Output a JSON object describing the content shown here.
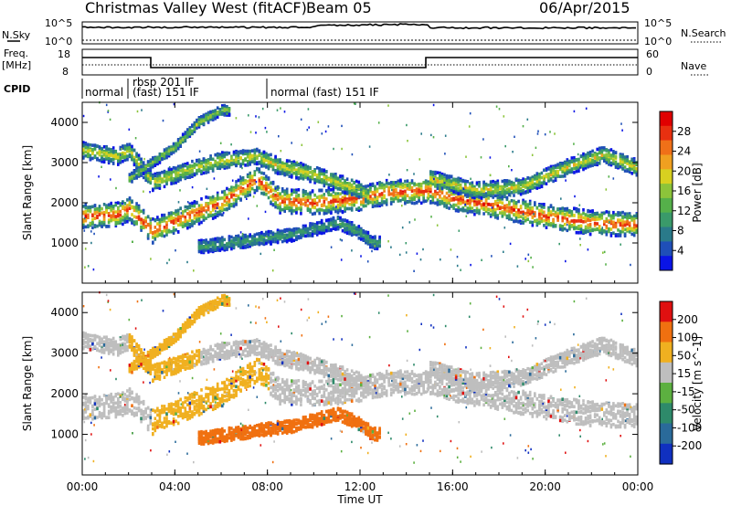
{
  "header": {
    "title": "Christmas Valley West (fitACF)",
    "beam": "Beam 05",
    "date": "06/Apr/2015"
  },
  "aux_panels": {
    "nsky_label": "N.Sky",
    "nsearch_label": "N.Search",
    "noise_ticks_left": [
      "10^5",
      "10^0"
    ],
    "noise_ticks_right": [
      "10^5",
      "10^0"
    ],
    "freq_label_1": "Freq.",
    "freq_label_2": "[MHz]",
    "freq_ticks": [
      "18",
      "8"
    ],
    "nave_label": "Nave",
    "nave_ticks": [
      "60",
      "0"
    ],
    "cpid_label": "CPID",
    "cpid_segments": [
      {
        "text": "normal",
        "start_hour": 0.0
      },
      {
        "text": "rbsp 201 IF",
        "start_hour": 1.75
      },
      {
        "text": "(fast) 151 IF",
        "start_hour": 1.75
      },
      {
        "text": "normal (fast) 151 IF",
        "start_hour": 8.0
      }
    ]
  },
  "chart_data": [
    {
      "type": "heatmap",
      "quantity": "Power",
      "ylabel": "Slant Range [km]",
      "xlabel": "Time UT",
      "x_ticks": [
        "00:00",
        "04:00",
        "08:00",
        "12:00",
        "16:00",
        "20:00",
        "00:00"
      ],
      "xlim_hours": [
        0,
        24
      ],
      "ylim": [
        0,
        4500
      ],
      "y_ticks": [
        1000,
        2000,
        3000,
        4000
      ],
      "colorbar_label": "Power [dB]",
      "colorbar_ticks": [
        "4",
        "8",
        "12",
        "16",
        "20",
        "24",
        "28"
      ],
      "colormap": [
        "#0a14e6",
        "#1f4fb8",
        "#2a7a8a",
        "#3a9a6a",
        "#55b04a",
        "#8cc43a",
        "#d8d020",
        "#f0a020",
        "#f07018",
        "#e83010",
        "#e00000"
      ],
      "scatter_regions": [
        {
          "name": "lower band",
          "points": [
            [
              0,
              1650
            ],
            [
              1.5,
              1700
            ],
            [
              2,
              1850
            ],
            [
              3,
              1300
            ],
            [
              4,
              1550
            ],
            [
              6,
              2000
            ],
            [
              7.5,
              2600
            ],
            [
              8.5,
              2050
            ],
            [
              10,
              2000
            ],
            [
              12,
              2100
            ],
            [
              13,
              2250
            ],
            [
              15,
              2300
            ],
            [
              16,
              2100
            ],
            [
              18,
              1900
            ],
            [
              20,
              1650
            ],
            [
              22,
              1500
            ],
            [
              24,
              1450
            ]
          ]
        },
        {
          "name": "upper band",
          "points": [
            [
              0,
              3300
            ],
            [
              1.5,
              3150
            ],
            [
              2,
              3300
            ],
            [
              3,
              2500
            ],
            [
              4.5,
              2800
            ],
            [
              6,
              3050
            ],
            [
              7.5,
              3150
            ],
            [
              8.5,
              2900
            ],
            [
              10,
              2700
            ],
            [
              12,
              2300
            ],
            [
              13,
              1800
            ],
            [
              15,
              2600
            ],
            [
              17,
              2300
            ],
            [
              19,
              2400
            ],
            [
              21,
              2900
            ],
            [
              22.5,
              3200
            ],
            [
              24,
              2850
            ]
          ]
        },
        {
          "name": "third band",
          "points": [
            [
              2,
              2600
            ],
            [
              3,
              3000
            ],
            [
              4,
              3400
            ],
            [
              5,
              4000
            ],
            [
              6,
              4300
            ]
          ]
        },
        {
          "name": "near range",
          "points": [
            [
              5,
              900
            ],
            [
              7,
              1050
            ],
            [
              9,
              1200
            ],
            [
              11,
              1500
            ],
            [
              12,
              1250
            ],
            [
              12.5,
              1000
            ]
          ]
        }
      ]
    },
    {
      "type": "heatmap",
      "quantity": "Velocity",
      "ylabel": "Slant Range [km]",
      "xlabel": "Time UT",
      "x_ticks": [
        "00:00",
        "04:00",
        "08:00",
        "12:00",
        "16:00",
        "20:00",
        "00:00"
      ],
      "xlim_hours": [
        0,
        24
      ],
      "ylim": [
        0,
        4500
      ],
      "y_ticks": [
        1000,
        2000,
        3000,
        4000
      ],
      "colorbar_label": "Velocity [m s^-1]",
      "colorbar_ticks": [
        "200",
        "100",
        "50",
        "15",
        "-15",
        "-50",
        "-100",
        "-200"
      ],
      "colormap": [
        "#1030c0",
        "#2a6a9a",
        "#2e8a6a",
        "#5cb040",
        "#bebebe",
        "#f0b020",
        "#f07010",
        "#e01010"
      ]
    }
  ]
}
